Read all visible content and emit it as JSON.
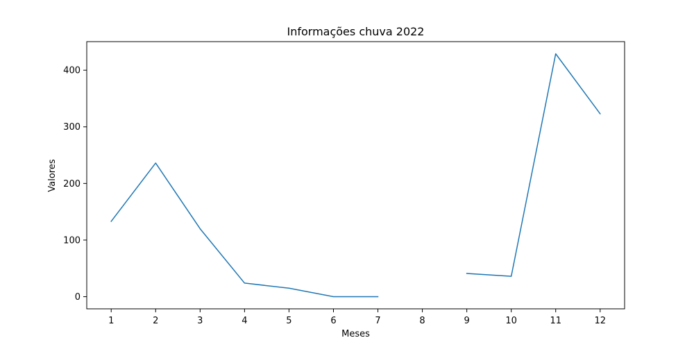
{
  "chart_data": {
    "type": "line",
    "title": "Informações chuva 2022",
    "xlabel": "Meses",
    "ylabel": "Valores",
    "x": [
      1,
      2,
      3,
      4,
      5,
      6,
      7,
      8,
      9,
      10,
      11,
      12
    ],
    "series": [
      {
        "name": "",
        "values": [
          133,
          236,
          120,
          24,
          15,
          0,
          0,
          null,
          41,
          36,
          429,
          323
        ],
        "color": "#1f77b4"
      }
    ],
    "xlim": [
      0.45,
      12.55
    ],
    "ylim": [
      -21.45,
      450.45
    ],
    "xticks": [
      1,
      2,
      3,
      4,
      5,
      6,
      7,
      8,
      9,
      10,
      11,
      12
    ],
    "yticks": [
      0,
      100,
      200,
      300,
      400
    ],
    "grid": false,
    "legend": "none"
  }
}
